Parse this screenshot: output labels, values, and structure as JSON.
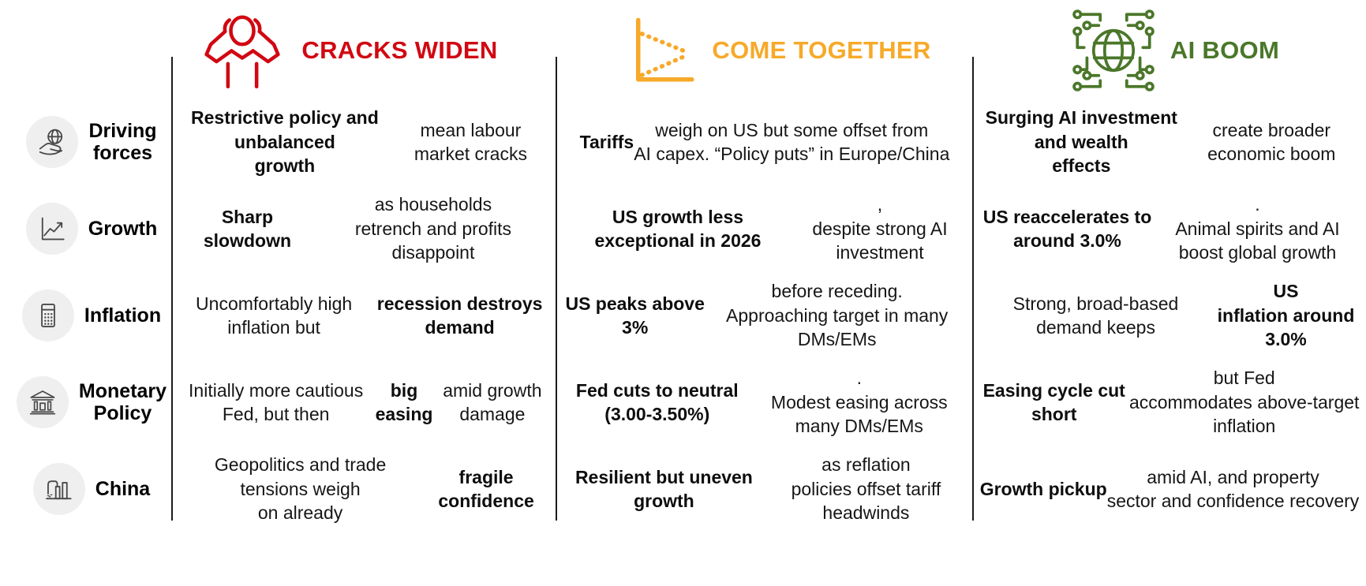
{
  "header": {
    "scenarios": [
      {
        "title": "CRACKS WIDEN",
        "color": "#D10812",
        "icon": "person-head-in-hands-icon"
      },
      {
        "title": "COME TOGETHER",
        "color": "#F7A929",
        "icon": "converging-trend-lines-icon"
      },
      {
        "title": "AI BOOM",
        "color": "#4A7729",
        "icon": "globe-circuit-icon"
      }
    ]
  },
  "rows": [
    {
      "label": "Driving\nforces",
      "icon": "hand-holding-globe-icon"
    },
    {
      "label": "Growth",
      "icon": "line-chart-icon"
    },
    {
      "label": "Inflation",
      "icon": "calculator-icon"
    },
    {
      "label": "Monetary\nPolicy",
      "icon": "bank-icon"
    },
    {
      "label": "China",
      "icon": "factory-icon"
    }
  ],
  "cells": [
    {
      "row": "Driving forces",
      "cracks_widen": [
        {
          "t": "Restrictive policy and unbalanced\ngrowth",
          "b": true
        },
        {
          "t": " mean labour market cracks",
          "b": false
        }
      ],
      "come_together": [
        {
          "t": "Tariffs",
          "b": true
        },
        {
          "t": " weigh on US but some offset from\nAI capex. “Policy puts” in Europe/China",
          "b": false
        }
      ],
      "ai_boom": [
        {
          "t": "Surging AI investment and wealth\neffects",
          "b": true
        },
        {
          "t": " create broader economic boom",
          "b": false
        }
      ]
    },
    {
      "row": "Growth",
      "cracks_widen": [
        {
          "t": "Sharp slowdown",
          "b": true
        },
        {
          "t": " as households\nretrench and profits disappoint",
          "b": false
        }
      ],
      "come_together": [
        {
          "t": "US growth less exceptional in 2026",
          "b": true
        },
        {
          "t": ",\ndespite strong AI investment",
          "b": false
        }
      ],
      "ai_boom": [
        {
          "t": "US reaccelerates to around 3.0%",
          "b": true
        },
        {
          "t": ".\nAnimal spirits and AI boost global growth",
          "b": false
        }
      ]
    },
    {
      "row": "Inflation",
      "cracks_widen": [
        {
          "t": "Uncomfortably high inflation but\n",
          "b": false
        },
        {
          "t": "recession destroys demand",
          "b": true
        }
      ],
      "come_together": [
        {
          "t": "US peaks above 3%",
          "b": true
        },
        {
          "t": " before receding.\nApproaching target in many DMs/EMs",
          "b": false
        }
      ],
      "ai_boom": [
        {
          "t": "Strong, broad-based demand keeps ",
          "b": false
        },
        {
          "t": "US\ninflation around 3.0%",
          "b": true
        }
      ]
    },
    {
      "row": "Monetary Policy",
      "cracks_widen": [
        {
          "t": "Initially more cautious Fed, but then\n",
          "b": false
        },
        {
          "t": "big easing",
          "b": true
        },
        {
          "t": " amid growth damage",
          "b": false
        }
      ],
      "come_together": [
        {
          "t": "Fed cuts to neutral (3.00-3.50%)",
          "b": true
        },
        {
          "t": ".\nModest easing across many DMs/EMs",
          "b": false
        }
      ],
      "ai_boom": [
        {
          "t": "Easing cycle cut short",
          "b": true
        },
        {
          "t": " but Fed\naccommodates above-target inflation",
          "b": false
        }
      ]
    },
    {
      "row": "China",
      "cracks_widen": [
        {
          "t": "Geopolitics and trade tensions weigh\non already ",
          "b": false
        },
        {
          "t": "fragile confidence",
          "b": true
        }
      ],
      "come_together": [
        {
          "t": "Resilient but uneven growth",
          "b": true
        },
        {
          "t": " as reflation\npolicies offset tariff headwinds",
          "b": false
        }
      ],
      "ai_boom": [
        {
          "t": "Growth pickup",
          "b": true
        },
        {
          "t": " amid AI, and property\nsector and confidence recovery",
          "b": false
        }
      ]
    }
  ]
}
